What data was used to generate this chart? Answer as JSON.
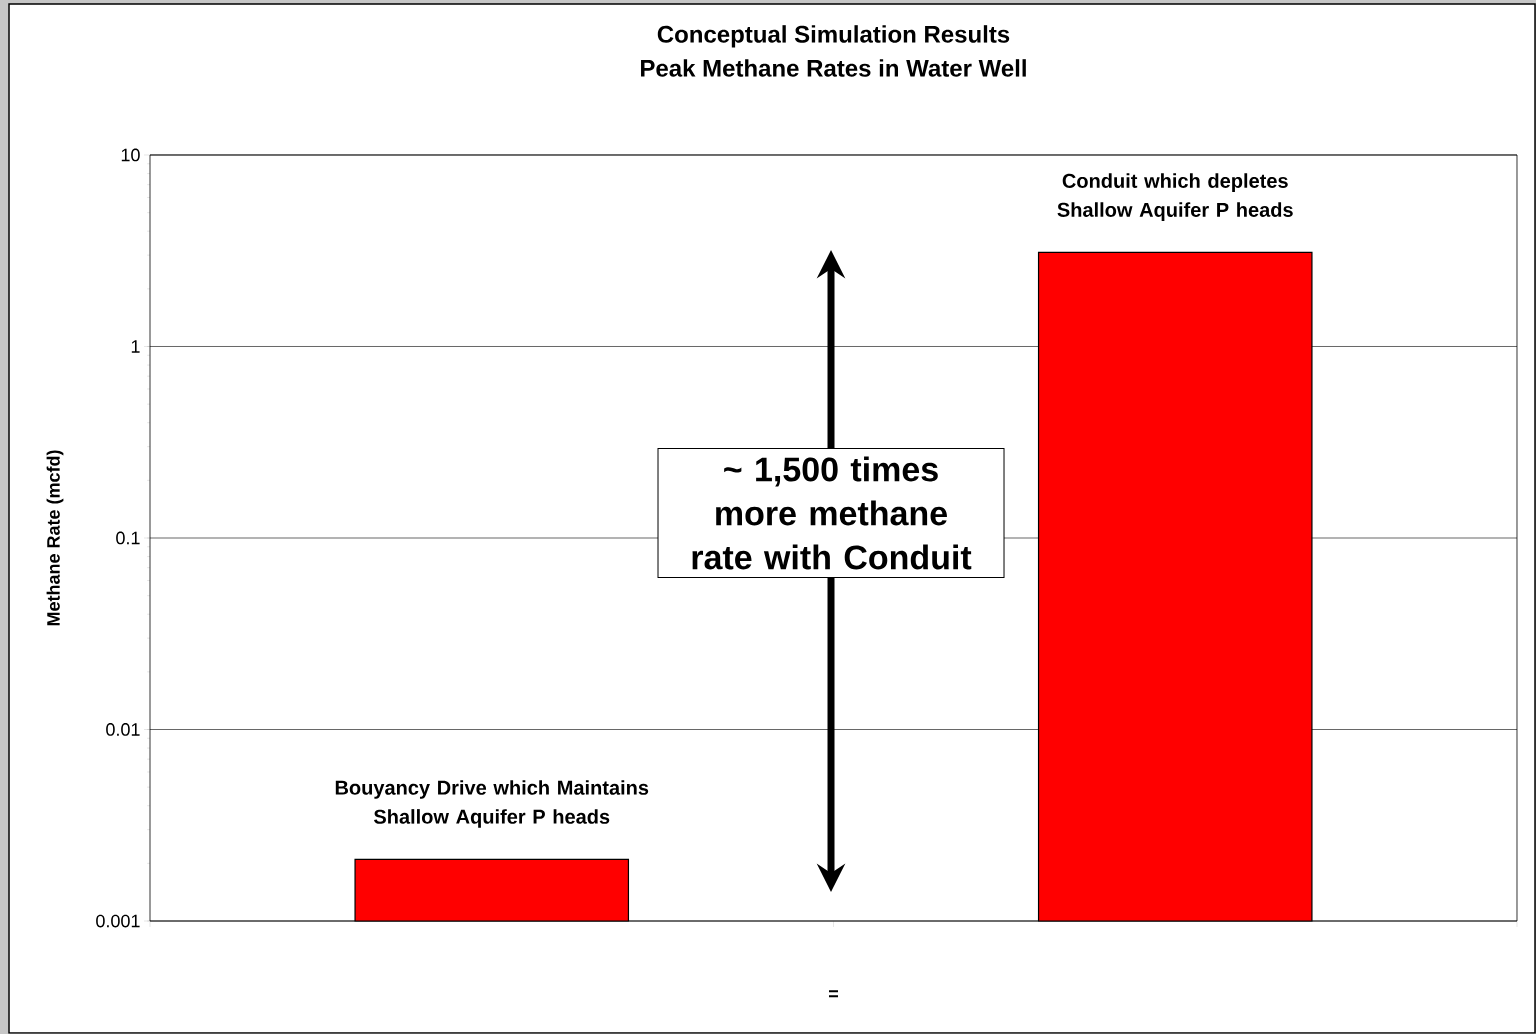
{
  "chart_data": {
    "type": "bar",
    "title": "Conceptual Simulation Results",
    "subtitle": "Peak Methane Rates in Water Well",
    "xlabel": "=",
    "ylabel": "Methane Rate (mcfd)",
    "categories": [
      "Bouyancy Drive which Maintains Shallow Aquifer P heads",
      "Conduit which depletes Shallow Aquifer P heads"
    ],
    "values": [
      0.0021,
      3.1
    ],
    "color": "#ff0000",
    "log": true,
    "ylim": [
      0.001,
      10
    ],
    "yticks": [
      0.001,
      0.01,
      0.1,
      1,
      10
    ],
    "grid": "y",
    "annotations": [
      "~ 1,500 times more methane rate with Conduit"
    ]
  }
}
